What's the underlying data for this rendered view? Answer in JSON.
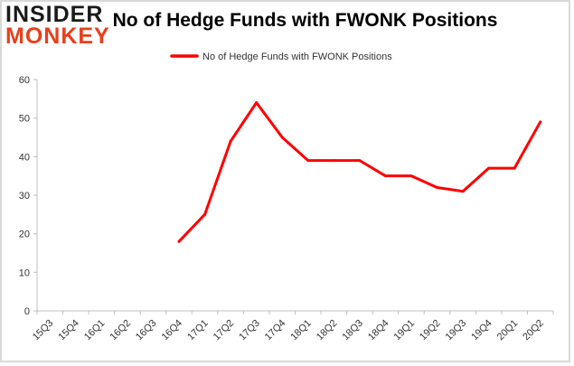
{
  "logo": {
    "line1": "INSIDER",
    "line2": "MONKEY"
  },
  "chart_data": {
    "type": "line",
    "title": "No of Hedge Funds with FWONK Positions",
    "xlabel": "",
    "ylabel": "",
    "categories": [
      "15Q3",
      "15Q4",
      "16Q1",
      "16Q2",
      "16Q3",
      "16Q4",
      "17Q1",
      "17Q2",
      "17Q3",
      "17Q4",
      "18Q1",
      "18Q2",
      "18Q3",
      "18Q4",
      "19Q1",
      "19Q2",
      "19Q3",
      "19Q4",
      "20Q1",
      "20Q2"
    ],
    "series": [
      {
        "name": "No of Hedge Funds with FWONK Positions",
        "color": "#ff0000",
        "values": [
          null,
          null,
          null,
          null,
          null,
          18,
          25,
          44,
          54,
          45,
          39,
          39,
          39,
          35,
          35,
          32,
          31,
          37,
          37,
          49
        ]
      }
    ],
    "ylim": [
      0,
      60
    ],
    "yticks": [
      0,
      10,
      20,
      30,
      40,
      50,
      60
    ],
    "grid": false,
    "legend": "top-center"
  }
}
